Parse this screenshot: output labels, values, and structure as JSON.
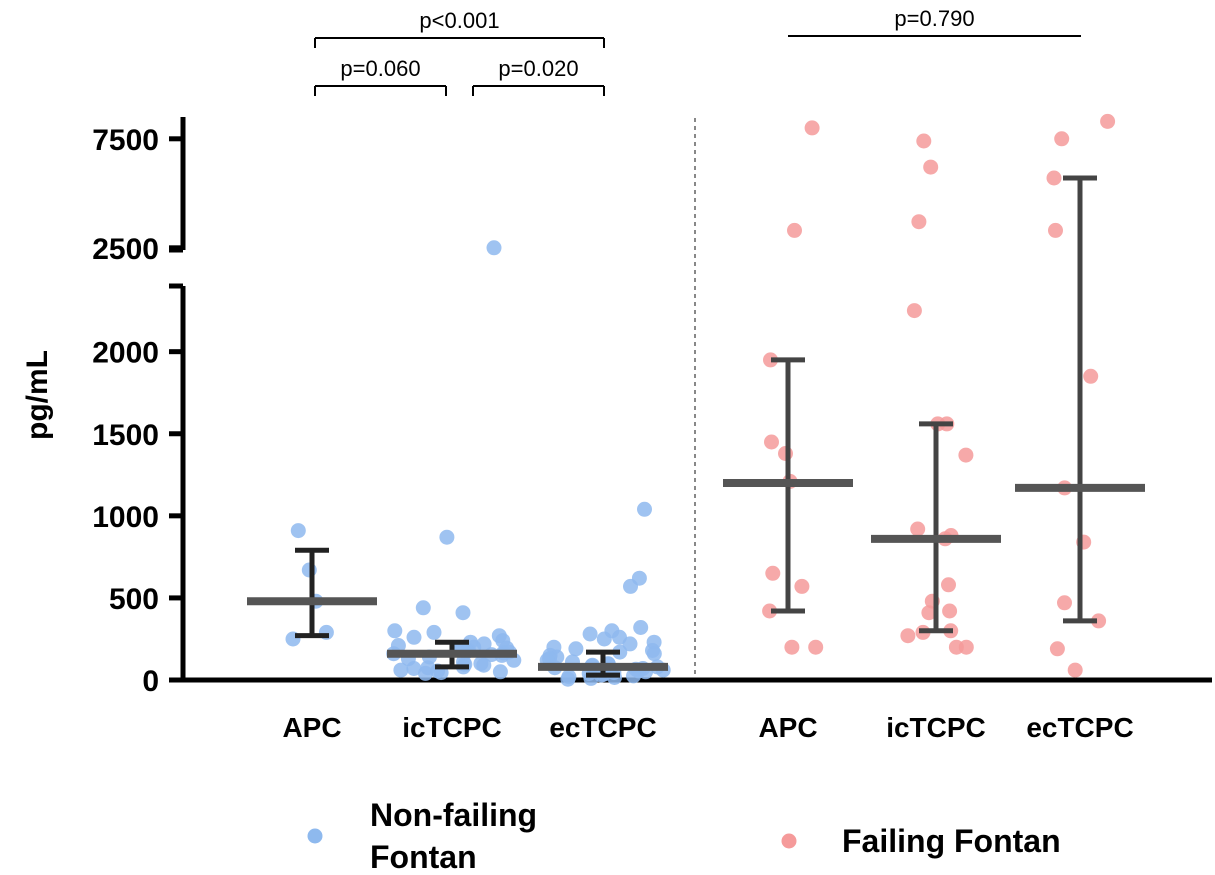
{
  "chart_data": {
    "type": "scatter",
    "ylabel": "pg/mL",
    "y_axis": {
      "lower_segment": {
        "range": [
          0,
          2400
        ],
        "ticks": [
          0,
          500,
          1000,
          1500,
          2000
        ]
      },
      "upper_segment": {
        "range": [
          2400,
          8500
        ],
        "ticks": [
          2500,
          7500
        ]
      },
      "broken": true
    },
    "categories": [
      "APC",
      "icTCPC",
      "ecTCPC",
      "APC",
      "icTCPC",
      "ecTCPC"
    ],
    "groups": [
      {
        "category": "APC",
        "series": "Non-failing Fontan",
        "median": 480,
        "iqr": [
          270,
          790
        ],
        "points": [
          250,
          290,
          480,
          670,
          910
        ]
      },
      {
        "category": "icTCPC",
        "series": "Non-failing Fontan",
        "median": 160,
        "iqr": [
          80,
          230
        ],
        "points": [
          2500,
          870,
          440,
          410,
          300,
          290,
          270,
          260,
          240,
          230,
          220,
          210,
          200,
          195,
          190,
          185,
          180,
          175,
          170,
          165,
          160,
          155,
          150,
          140,
          130,
          120,
          110,
          100,
          95,
          90,
          80,
          75,
          70,
          60,
          55,
          50,
          45,
          40
        ]
      },
      {
        "category": "ecTCPC",
        "series": "Non-failing Fontan",
        "median": 80,
        "iqr": [
          30,
          170
        ],
        "points": [
          1040,
          620,
          570,
          320,
          300,
          280,
          260,
          250,
          230,
          220,
          200,
          190,
          180,
          170,
          160,
          150,
          140,
          130,
          120,
          110,
          100,
          95,
          90,
          85,
          80,
          75,
          70,
          65,
          60,
          55,
          50,
          45,
          40,
          35,
          30,
          25,
          20,
          15,
          10,
          5
        ]
      },
      {
        "category": "APC",
        "series": "Failing Fontan",
        "median": 1200,
        "iqr": [
          420,
          1950
        ],
        "points": [
          8000,
          3300,
          1950,
          1450,
          1380,
          1210,
          650,
          570,
          420,
          200,
          200
        ]
      },
      {
        "category": "icTCPC",
        "series": "Failing Fontan",
        "median": 860,
        "iqr": [
          300,
          1560
        ],
        "points": [
          7400,
          6200,
          3700,
          2250,
          1560,
          1560,
          1370,
          920,
          880,
          860,
          580,
          480,
          420,
          410,
          300,
          290,
          270,
          200,
          200
        ]
      },
      {
        "category": "ecTCPC",
        "series": "Failing Fontan",
        "median": 1170,
        "iqr": [
          360,
          5700
        ],
        "points": [
          8300,
          7500,
          5700,
          3300,
          1850,
          1170,
          840,
          470,
          360,
          190,
          60
        ]
      }
    ],
    "comparisons": [
      {
        "between": [
          "APC",
          "ecTCPC"
        ],
        "side": "Non-failing Fontan",
        "label": "p<0.001"
      },
      {
        "between": [
          "APC",
          "icTCPC"
        ],
        "side": "Non-failing Fontan",
        "label": "p=0.060"
      },
      {
        "between": [
          "icTCPC",
          "ecTCPC"
        ],
        "side": "Non-failing Fontan",
        "label": "p=0.020"
      },
      {
        "between": [
          "APC",
          "ecTCPC"
        ],
        "side": "Failing Fontan",
        "label": "p=0.790"
      }
    ],
    "legend": {
      "placement": "bottom",
      "entries": [
        {
          "name": "Non-failing Fontan",
          "lines": [
            "Non-failing",
            "Fontan"
          ],
          "color": "#8EB9EE"
        },
        {
          "name": "Failing Fontan",
          "lines": [
            "Failing Fontan"
          ],
          "color": "#F59A9A"
        }
      ]
    },
    "colors": {
      "nonfailing": "#8EB9EE",
      "failing": "#F59A9A",
      "median_bar": "#555555",
      "iqr_nonfailing": "#222222",
      "iqr_failing": "#444444"
    }
  }
}
